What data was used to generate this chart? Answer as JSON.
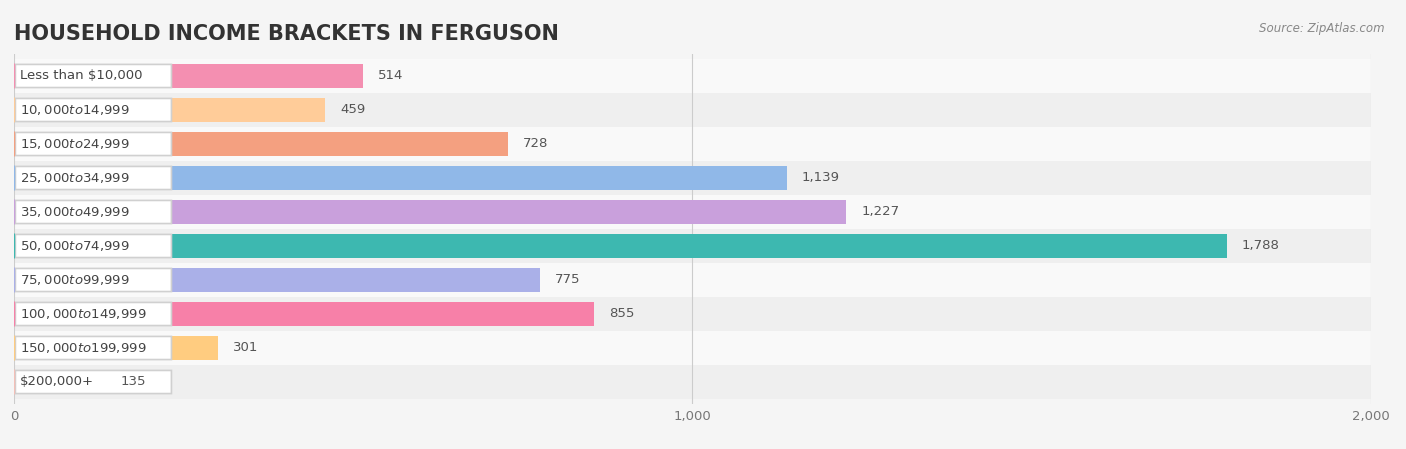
{
  "title": "HOUSEHOLD INCOME BRACKETS IN FERGUSON",
  "source": "Source: ZipAtlas.com",
  "categories": [
    "Less than $10,000",
    "$10,000 to $14,999",
    "$15,000 to $24,999",
    "$25,000 to $34,999",
    "$35,000 to $49,999",
    "$50,000 to $74,999",
    "$75,000 to $99,999",
    "$100,000 to $149,999",
    "$150,000 to $199,999",
    "$200,000+"
  ],
  "values": [
    514,
    459,
    728,
    1139,
    1227,
    1788,
    775,
    855,
    301,
    135
  ],
  "bar_colors": [
    "#F48FB1",
    "#FFCC99",
    "#F4A080",
    "#90B8E8",
    "#C9A0DC",
    "#3DB8B0",
    "#AAB0E8",
    "#F780A8",
    "#FFCC80",
    "#F4C0B8"
  ],
  "background_color": "#f5f5f5",
  "xlim": [
    0,
    2000
  ],
  "xticks": [
    0,
    1000,
    2000
  ],
  "title_fontsize": 15,
  "label_fontsize": 9.5,
  "value_fontsize": 9.5
}
